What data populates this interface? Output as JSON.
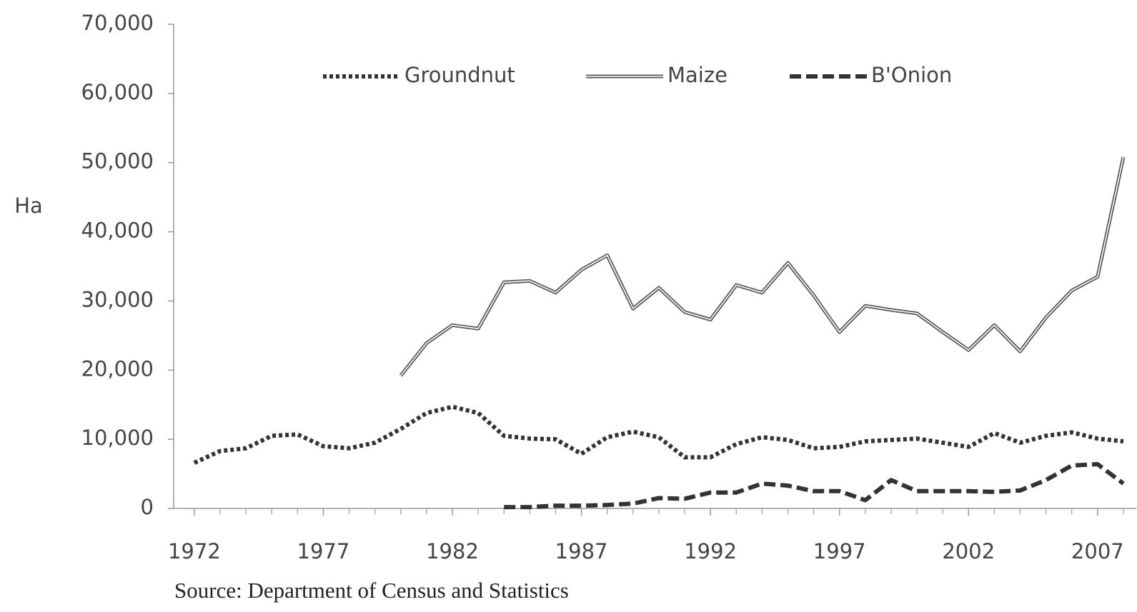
{
  "chart_data": {
    "type": "line",
    "y_label": "Ha",
    "source": "Source: Department of Census and Statistics",
    "x": [
      1972,
      1973,
      1974,
      1975,
      1976,
      1977,
      1978,
      1979,
      1980,
      1981,
      1982,
      1983,
      1984,
      1985,
      1986,
      1987,
      1988,
      1989,
      1990,
      1991,
      1992,
      1993,
      1994,
      1995,
      1996,
      1997,
      1998,
      1999,
      2000,
      2001,
      2002,
      2003,
      2004,
      2005,
      2006,
      2007,
      2008
    ],
    "series": [
      {
        "name": "Groundnut",
        "color": "#333333",
        "style": "dotted",
        "values": [
          6600,
          8300,
          8700,
          10500,
          10700,
          9000,
          8700,
          9500,
          11500,
          13800,
          14700,
          13800,
          10500,
          10100,
          10000,
          7900,
          10300,
          11100,
          10300,
          7400,
          7400,
          9300,
          10300,
          9900,
          8700,
          8900,
          9700,
          9900,
          10100,
          9500,
          8900,
          10900,
          9500,
          10500,
          11000,
          10100,
          9700
        ]
      },
      {
        "name": "Maize",
        "color": "#555555",
        "style": "double",
        "values": [
          null,
          null,
          null,
          null,
          null,
          null,
          null,
          null,
          19200,
          23900,
          26500,
          26000,
          32700,
          32900,
          31200,
          34500,
          36600,
          28900,
          31900,
          28400,
          27300,
          32300,
          31200,
          35500,
          30800,
          25500,
          29300,
          28700,
          28200,
          25500,
          22900,
          26500,
          22700,
          27600,
          31500,
          33500,
          50800
        ]
      },
      {
        "name": "B'Onion",
        "color": "#333333",
        "style": "dashed",
        "values": [
          null,
          null,
          null,
          null,
          null,
          null,
          null,
          null,
          null,
          null,
          null,
          null,
          200,
          200,
          400,
          400,
          500,
          700,
          1500,
          1400,
          2300,
          2300,
          3600,
          3300,
          2500,
          2500,
          1200,
          4100,
          2500,
          2500,
          2500,
          2400,
          2600,
          4100,
          6200,
          6400,
          3600
        ]
      }
    ],
    "xlim": [
      1971.2,
      2008.5
    ],
    "xticks": [
      1972,
      1977,
      1982,
      1987,
      1992,
      1997,
      2002,
      2007
    ],
    "ylim": [
      0,
      70000
    ],
    "yticks": [
      0,
      {
        "value": 10000,
        "label": "10,000"
      },
      {
        "value": 20000,
        "label": "20,000"
      },
      {
        "value": 30000,
        "label": "30,000"
      },
      {
        "value": 40000,
        "label": "40,000"
      },
      {
        "value": 50000,
        "label": "50,000"
      },
      {
        "value": 60000,
        "label": "60,000"
      },
      {
        "value": 70000,
        "label": "70,000"
      }
    ]
  }
}
